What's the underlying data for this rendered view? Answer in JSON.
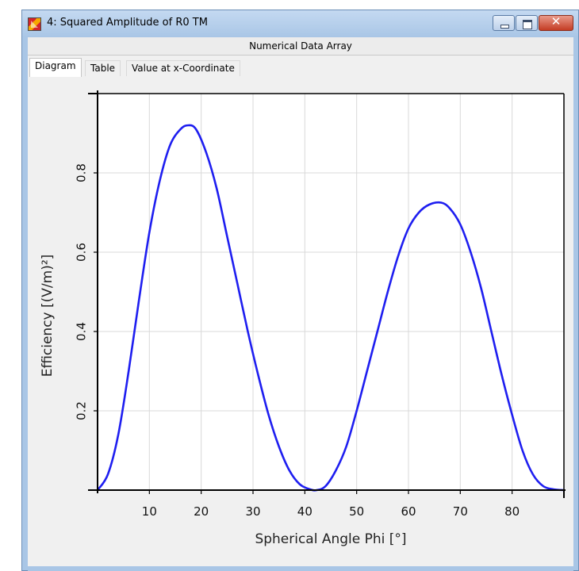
{
  "window": {
    "title": "4: Squared Amplitude of R0 TM",
    "close_glyph": "✕"
  },
  "subheader": "Numerical Data Array",
  "tabs": [
    {
      "label": "Diagram",
      "active": true
    },
    {
      "label": "Table",
      "active": false
    },
    {
      "label": "Value at x-Coordinate",
      "active": false
    }
  ],
  "colors": {
    "curve": "#1e1ef0",
    "plot_background": "#ffffff",
    "grid": "#d9d9d9"
  },
  "chart_data": {
    "type": "line",
    "xlabel": "Spherical Angle Phi [°]",
    "ylabel": "Efficiency [(V/m)²]",
    "xlim": [
      0,
      90
    ],
    "ylim": [
      0,
      1.0
    ],
    "x_ticks": [
      10,
      20,
      30,
      40,
      50,
      60,
      70,
      80
    ],
    "y_ticks": [
      0.2,
      0.4,
      0.6,
      0.8
    ],
    "grid": true,
    "legend": "none",
    "series": [
      {
        "x": [
          0,
          2,
          4,
          6,
          8,
          10,
          12,
          14,
          16,
          17.5,
          19,
          21,
          23,
          25,
          27,
          29,
          31,
          33,
          35,
          37,
          39,
          41,
          42.3,
          44,
          46,
          48,
          50,
          52,
          54,
          56,
          58,
          60,
          62,
          64,
          66.3,
          68,
          70,
          72,
          74,
          76,
          78,
          80,
          82,
          84,
          86,
          88,
          90
        ],
        "y": [
          0.0,
          0.04,
          0.14,
          0.3,
          0.48,
          0.65,
          0.78,
          0.87,
          0.91,
          0.92,
          0.91,
          0.85,
          0.76,
          0.64,
          0.52,
          0.4,
          0.29,
          0.19,
          0.11,
          0.05,
          0.015,
          0.002,
          0.0,
          0.01,
          0.05,
          0.11,
          0.2,
          0.3,
          0.4,
          0.5,
          0.59,
          0.66,
          0.7,
          0.72,
          0.725,
          0.71,
          0.67,
          0.6,
          0.51,
          0.4,
          0.29,
          0.19,
          0.1,
          0.04,
          0.01,
          0.002,
          0.0
        ]
      }
    ]
  }
}
